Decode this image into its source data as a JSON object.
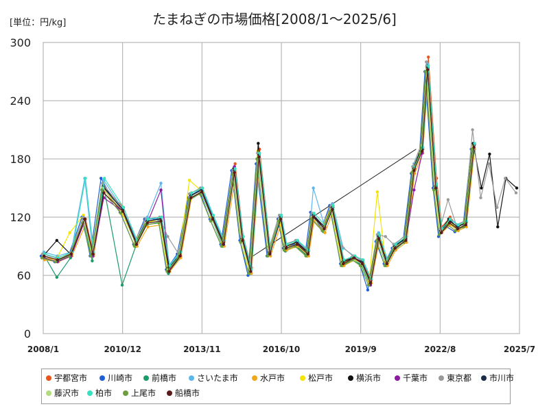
{
  "unit_label": "[単位：円/kg]",
  "title": "たまねぎの市場価格[2008/1～2025/6]",
  "chart_data": {
    "type": "line",
    "title": "たまねぎの市場価格[2008/1～2025/6]",
    "ylabel": "単位：円/kg",
    "ylim": [
      0,
      300
    ],
    "yticks": [
      0,
      60,
      120,
      180,
      240,
      300
    ],
    "xlim": [
      2008.0,
      2025.5
    ],
    "xticks": [
      {
        "label": "2008/1",
        "x": 2008.0
      },
      {
        "label": "2010/12",
        "x": 2010.917
      },
      {
        "label": "2013/11",
        "x": 2013.833
      },
      {
        "label": "2016/10",
        "x": 2016.75
      },
      {
        "label": "2019/9",
        "x": 2019.667
      },
      {
        "label": "2022/8",
        "x": 2022.583
      },
      {
        "label": "2025/7",
        "x": 2025.5
      }
    ],
    "grid": true,
    "legend_position": "bottom",
    "base_x": [
      2008.0,
      2008.5,
      2009.0,
      2009.5,
      2009.8,
      2010.2,
      2010.9,
      2011.4,
      2011.8,
      2012.3,
      2012.6,
      2013.0,
      2013.4,
      2013.8,
      2014.2,
      2014.6,
      2015.0,
      2015.3,
      2015.6,
      2015.9,
      2016.3,
      2016.7,
      2016.9,
      2017.3,
      2017.7,
      2017.9,
      2018.3,
      2018.6,
      2019.0,
      2019.4,
      2019.7,
      2020.0,
      2020.3,
      2020.6,
      2020.9,
      2021.3,
      2021.6,
      2021.9,
      2022.1,
      2022.4,
      2022.6,
      2022.9,
      2023.2,
      2023.5,
      2023.8,
      2024.1,
      2024.4,
      2024.7,
      2025.0,
      2025.4
    ],
    "series": [
      {
        "name": "宇都宮市",
        "color": "#e8541c",
        "offset": 2,
        "values": [
          78,
          76,
          82,
          118,
          82,
          150,
          130,
          95,
          115,
          120,
          68,
          80,
          145,
          150,
          120,
          95,
          175,
          100,
          68,
          190,
          85,
          120,
          90,
          95,
          85,
          120,
          110,
          130,
          75,
          80,
          75,
          55,
          100,
          75,
          90,
          100,
          170,
          190,
          285,
          160,
          110,
          120,
          110,
          115,
          195,
          null,
          null,
          null,
          null,
          null
        ]
      },
      {
        "name": "川崎市",
        "color": "#1f5fd6",
        "offset": -3,
        "values": [
          80,
          74,
          80,
          120,
          80,
          160,
          125,
          92,
          118,
          118,
          66,
          82,
          140,
          148,
          118,
          92,
          168,
          96,
          60,
          175,
          80,
          118,
          88,
          92,
          82,
          125,
          108,
          132,
          72,
          78,
          72,
          45,
          95,
          72,
          88,
          96,
          165,
          185,
          270,
          150,
          100,
          110,
          105,
          110,
          190,
          null,
          null,
          null,
          null,
          null
        ]
      },
      {
        "name": "前橋市",
        "color": "#1a9b68",
        "offset": 0,
        "values": [
          82,
          58,
          78,
          115,
          75,
          155,
          50,
          90,
          112,
          115,
          62,
          78,
          138,
          145,
          118,
          90,
          165,
          95,
          62,
          180,
          82,
          115,
          85,
          90,
          80,
          118,
          105,
          128,
          70,
          76,
          70,
          50,
          98,
          70,
          86,
          95,
          168,
          188,
          272,
          150,
          105,
          115,
          108,
          112,
          192,
          null,
          null,
          null,
          null,
          null
        ]
      },
      {
        "name": "さいたま市",
        "color": "#5bb7ea",
        "offset": 1,
        "values": [
          84,
          80,
          84,
          160,
          84,
          158,
          128,
          96,
          120,
          155,
          70,
          84,
          142,
          150,
          122,
          96,
          170,
          100,
          66,
          185,
          86,
          122,
          92,
          96,
          86,
          150,
          112,
          134,
          88,
          80,
          76,
          58,
          104,
          78,
          92,
          102,
          175,
          192,
          278,
          155,
          108,
          118,
          112,
          116,
          196,
          null,
          null,
          null,
          null,
          null
        ]
      },
      {
        "name": "水戸市",
        "color": "#f0a81a",
        "offset": 2,
        "values": [
          76,
          74,
          80,
          112,
          80,
          148,
          122,
          90,
          110,
          112,
          64,
          78,
          140,
          145,
          116,
          90,
          160,
          94,
          62,
          178,
          80,
          114,
          86,
          90,
          80,
          116,
          104,
          126,
          70,
          76,
          72,
          52,
          96,
          70,
          86,
          94,
          165,
          186,
          270,
          148,
          104,
          112,
          106,
          110,
          190,
          null,
          null,
          null,
          null,
          null
        ]
      },
      {
        "name": "松戸市",
        "color": "#f2e500",
        "offset": -1,
        "values": [
          78,
          76,
          104,
          122,
          82,
          152,
          126,
          94,
          114,
          118,
          66,
          80,
          158,
          148,
          120,
          94,
          168,
          98,
          64,
          188,
          84,
          118,
          88,
          94,
          84,
          120,
          110,
          130,
          72,
          78,
          74,
          54,
          146,
          74,
          88,
          98,
          168,
          190,
          275,
          152,
          106,
          116,
          110,
          114,
          194,
          null,
          null,
          null,
          null,
          null
        ]
      },
      {
        "name": "横浜市",
        "color": "#111111",
        "offset": 0,
        "values": [
          80,
          96,
          82,
          118,
          82,
          152,
          128,
          94,
          116,
          118,
          68,
          80,
          142,
          148,
          120,
          94,
          170,
          98,
          66,
          196,
          84,
          120,
          90,
          94,
          84,
          122,
          110,
          130,
          74,
          78,
          74,
          54,
          100,
          74,
          90,
          98,
          170,
          192,
          276,
          152,
          106,
          118,
          110,
          114,
          196,
          150,
          185,
          110,
          160,
          150
        ]
      },
      {
        "name": "千葉市",
        "color": "#8e1aa4",
        "offset": 1,
        "values": [
          78,
          74,
          80,
          116,
          80,
          140,
          126,
          92,
          114,
          148,
          66,
          80,
          140,
          146,
          118,
          92,
          172,
          96,
          64,
          178,
          82,
          118,
          88,
          92,
          82,
          120,
          108,
          128,
          72,
          78,
          72,
          50,
          98,
          72,
          88,
          96,
          148,
          186,
          272,
          150,
          104,
          114,
          108,
          112,
          192,
          null,
          null,
          null,
          null,
          null
        ]
      },
      {
        "name": "東京都",
        "color": "#9a9a9a",
        "offset": -1,
        "values": [
          82,
          78,
          82,
          120,
          84,
          155,
          130,
          96,
          118,
          120,
          100,
          82,
          144,
          150,
          122,
          96,
          168,
          100,
          66,
          186,
          86,
          122,
          92,
          96,
          86,
          124,
          112,
          132,
          90,
          80,
          76,
          56,
          102,
          100,
          92,
          100,
          172,
          194,
          280,
          155,
          108,
          138,
          112,
          116,
          210,
          140,
          175,
          130,
          160,
          145
        ]
      },
      {
        "name": "市川市",
        "color": "#1c2a4a",
        "offset": 1,
        "values": [
          80,
          76,
          82,
          118,
          82,
          150,
          128,
          94,
          116,
          118,
          68,
          82,
          142,
          148,
          120,
          94,
          168,
          98,
          66,
          184,
          84,
          120,
          90,
          94,
          84,
          122,
          110,
          130,
          74,
          78,
          74,
          54,
          100,
          74,
          90,
          98,
          170,
          190,
          274,
          152,
          106,
          116,
          110,
          114,
          194,
          null,
          null,
          null,
          null,
          null
        ]
      },
      {
        "name": "藤沢市",
        "color": "#b3dc7c",
        "offset": 0,
        "values": [
          80,
          76,
          82,
          116,
          82,
          150,
          126,
          92,
          114,
          116,
          66,
          80,
          140,
          146,
          118,
          92,
          166,
          96,
          64,
          182,
          82,
          118,
          88,
          92,
          82,
          120,
          108,
          128,
          72,
          76,
          72,
          52,
          98,
          72,
          88,
          96,
          168,
          188,
          272,
          150,
          104,
          114,
          108,
          112,
          192,
          null,
          null,
          null,
          null,
          null
        ]
      },
      {
        "name": "柏市",
        "color": "#38e0c0",
        "offset": 2,
        "values": [
          82,
          78,
          84,
          160,
          84,
          160,
          130,
          96,
          118,
          120,
          70,
          84,
          145,
          150,
          122,
          96,
          170,
          100,
          66,
          186,
          86,
          122,
          92,
          96,
          86,
          124,
          112,
          132,
          76,
          80,
          76,
          56,
          102,
          76,
          92,
          100,
          172,
          192,
          276,
          154,
          108,
          118,
          112,
          116,
          196,
          null,
          null,
          null,
          null,
          null
        ]
      },
      {
        "name": "上尾市",
        "color": "#6b9e3c",
        "offset": -2,
        "values": [
          78,
          74,
          80,
          114,
          80,
          148,
          124,
          90,
          112,
          114,
          64,
          78,
          138,
          144,
          116,
          90,
          164,
          94,
          62,
          180,
          80,
          116,
          86,
          90,
          80,
          118,
          106,
          126,
          70,
          76,
          70,
          50,
          96,
          70,
          86,
          94,
          166,
          186,
          270,
          148,
          102,
          112,
          106,
          110,
          190,
          null,
          null,
          null,
          null,
          null
        ]
      },
      {
        "name": "船橋市",
        "color": "#5a1a1a",
        "offset": 1,
        "values": [
          80,
          76,
          82,
          118,
          82,
          145,
          126,
          92,
          114,
          116,
          64,
          80,
          140,
          146,
          118,
          92,
          166,
          96,
          64,
          182,
          82,
          118,
          88,
          92,
          82,
          120,
          108,
          128,
          72,
          78,
          72,
          52,
          98,
          72,
          88,
          96,
          168,
          188,
          272,
          150,
          104,
          114,
          108,
          112,
          192,
          null,
          null,
          null,
          null,
          null
        ]
      }
    ],
    "connector": {
      "from": [
        2015.6,
        78
      ],
      "to": [
        2021.7,
        190
      ]
    }
  }
}
